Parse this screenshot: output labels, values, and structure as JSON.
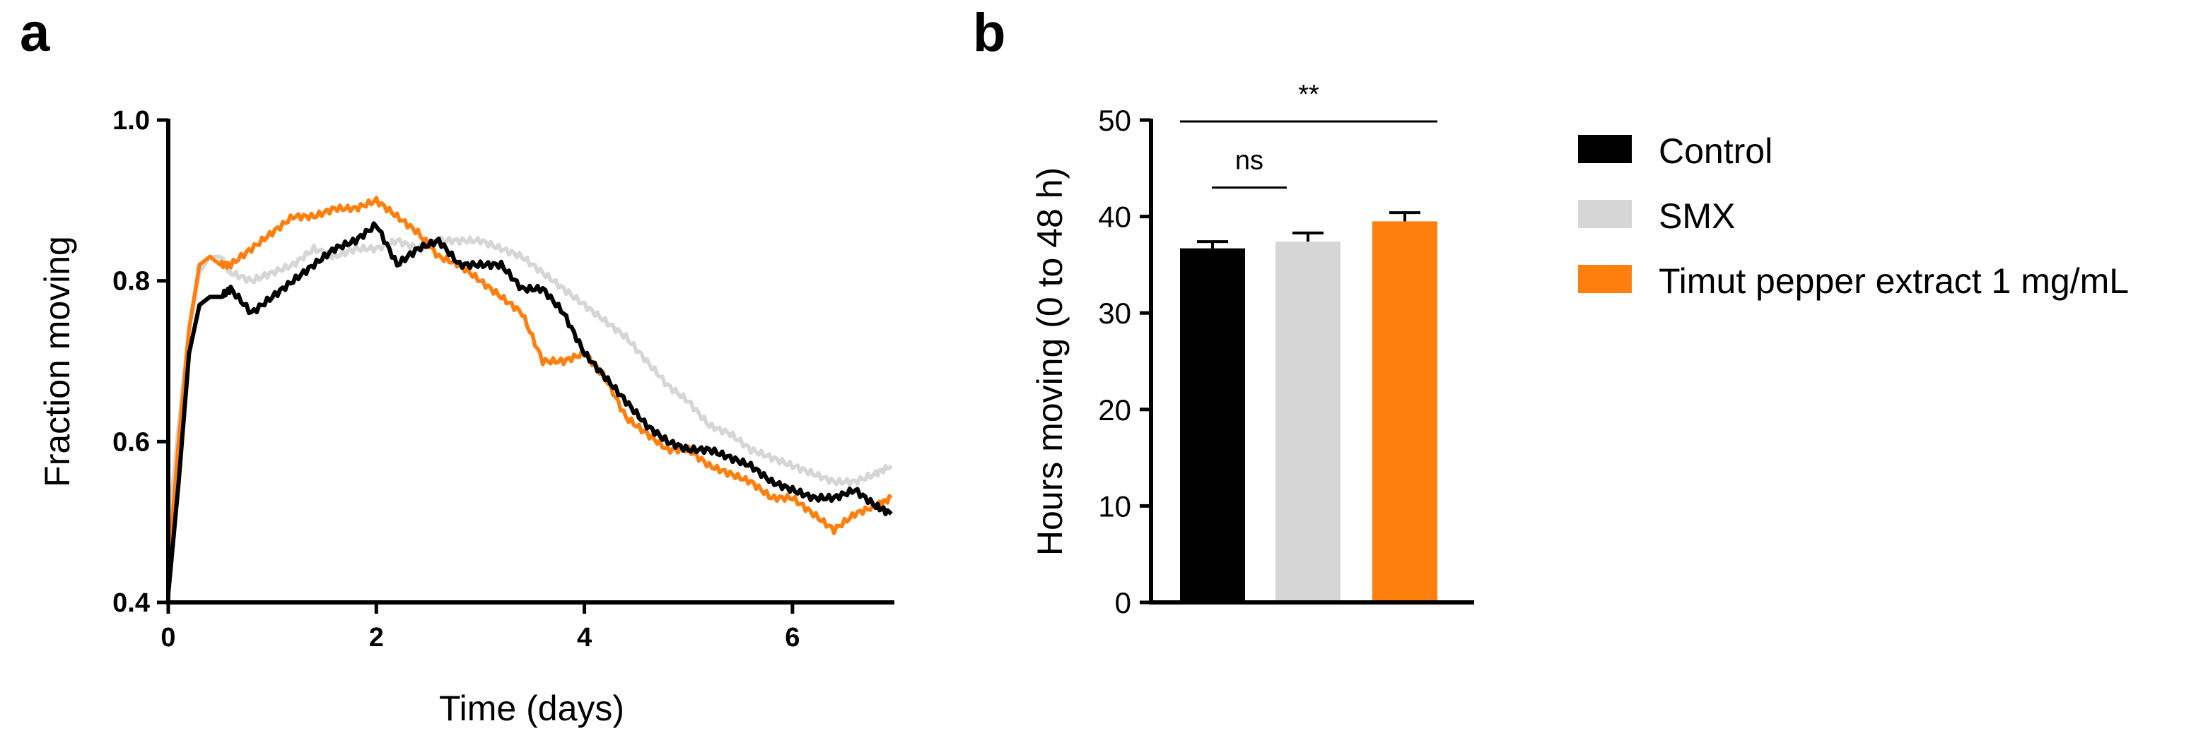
{
  "chart_data": [
    {
      "panel": "a",
      "type": "line",
      "title": "",
      "xlabel": "Time (days)",
      "ylabel": "Fraction moving",
      "xlim": [
        0,
        7
      ],
      "ylim": [
        0.4,
        1.0
      ],
      "xticks": [
        0,
        2,
        4,
        6
      ],
      "xtick_labels": [
        "0",
        "2",
        "4",
        "6"
      ],
      "yticks": [
        0.4,
        0.6,
        0.8,
        1.0
      ],
      "ytick_labels": [
        "0.4",
        "0.6",
        "0.8",
        "1.0"
      ],
      "series": [
        {
          "name": "SMX",
          "color": "#d6d6d6",
          "x": [
            0,
            0.1,
            0.2,
            0.3,
            0.4,
            0.5,
            0.6,
            0.8,
            1.0,
            1.2,
            1.4,
            1.6,
            1.8,
            2.0,
            2.2,
            2.4,
            2.6,
            2.8,
            3.0,
            3.2,
            3.4,
            3.6,
            3.8,
            4.0,
            4.2,
            4.4,
            4.6,
            4.8,
            5.0,
            5.2,
            5.4,
            5.6,
            5.8,
            6.0,
            6.2,
            6.4,
            6.6,
            6.8,
            6.95
          ],
          "y": [
            0.49,
            0.62,
            0.74,
            0.81,
            0.83,
            0.83,
            0.81,
            0.8,
            0.81,
            0.82,
            0.84,
            0.83,
            0.84,
            0.84,
            0.85,
            0.84,
            0.85,
            0.85,
            0.85,
            0.84,
            0.83,
            0.81,
            0.79,
            0.77,
            0.75,
            0.73,
            0.7,
            0.67,
            0.65,
            0.62,
            0.61,
            0.59,
            0.58,
            0.57,
            0.56,
            0.55,
            0.55,
            0.56,
            0.57
          ]
        },
        {
          "name": "Timut pepper extract 1 mg/mL",
          "color": "#ff7f0e",
          "x": [
            0,
            0.1,
            0.2,
            0.3,
            0.4,
            0.5,
            0.6,
            0.8,
            1.0,
            1.2,
            1.4,
            1.6,
            1.8,
            2.0,
            2.2,
            2.4,
            2.6,
            2.8,
            3.0,
            3.2,
            3.4,
            3.6,
            3.8,
            4.0,
            4.2,
            4.4,
            4.6,
            4.8,
            5.0,
            5.2,
            5.4,
            5.6,
            5.8,
            6.0,
            6.2,
            6.4,
            6.6,
            6.8,
            6.95
          ],
          "y": [
            0.44,
            0.6,
            0.74,
            0.82,
            0.83,
            0.82,
            0.82,
            0.84,
            0.86,
            0.88,
            0.88,
            0.89,
            0.89,
            0.9,
            0.88,
            0.86,
            0.83,
            0.82,
            0.8,
            0.78,
            0.76,
            0.7,
            0.7,
            0.71,
            0.68,
            0.63,
            0.61,
            0.59,
            0.59,
            0.57,
            0.56,
            0.55,
            0.53,
            0.53,
            0.51,
            0.49,
            0.51,
            0.52,
            0.53
          ]
        },
        {
          "name": "Control",
          "color": "#000000",
          "x": [
            0,
            0.1,
            0.2,
            0.3,
            0.4,
            0.5,
            0.6,
            0.8,
            1.0,
            1.2,
            1.4,
            1.6,
            1.8,
            2.0,
            2.2,
            2.4,
            2.6,
            2.8,
            3.0,
            3.2,
            3.4,
            3.6,
            3.8,
            4.0,
            4.2,
            4.4,
            4.6,
            4.8,
            5.0,
            5.2,
            5.4,
            5.6,
            5.8,
            6.0,
            6.2,
            6.4,
            6.6,
            6.8,
            6.95
          ],
          "y": [
            0.41,
            0.55,
            0.71,
            0.77,
            0.78,
            0.78,
            0.79,
            0.76,
            0.78,
            0.8,
            0.82,
            0.84,
            0.85,
            0.87,
            0.82,
            0.84,
            0.85,
            0.82,
            0.82,
            0.82,
            0.79,
            0.79,
            0.76,
            0.71,
            0.68,
            0.65,
            0.62,
            0.6,
            0.59,
            0.59,
            0.58,
            0.57,
            0.55,
            0.54,
            0.53,
            0.53,
            0.54,
            0.52,
            0.51
          ]
        }
      ]
    },
    {
      "panel": "b",
      "type": "bar",
      "title": "",
      "xlabel": "",
      "ylabel": "Hours moving (0 to 48 h)",
      "ylim": [
        0,
        50
      ],
      "yticks": [
        0,
        10,
        20,
        30,
        40,
        50
      ],
      "ytick_labels": [
        "0",
        "10",
        "20",
        "30",
        "40",
        "50"
      ],
      "categories": [
        "Control",
        "SMX",
        "Timut pepper extract 1 mg/mL"
      ],
      "values": [
        36.7,
        37.4,
        39.5
      ],
      "errors": [
        0.7,
        0.9,
        0.9
      ],
      "colors": [
        "#000000",
        "#d6d6d6",
        "#ff7f0e"
      ],
      "annotations": [
        {
          "from": 0,
          "to": 1,
          "label": "ns",
          "level": 43
        },
        {
          "from": 0,
          "to": 2,
          "label": "**",
          "level": 50
        }
      ]
    }
  ],
  "panels": {
    "a_label": "a",
    "b_label": "b"
  },
  "legend": {
    "items": [
      {
        "label": "Control",
        "color": "#000000"
      },
      {
        "label": "SMX",
        "color": "#d6d6d6"
      },
      {
        "label": "Timut pepper extract 1 mg/mL",
        "color": "#ff7f0e"
      }
    ]
  }
}
